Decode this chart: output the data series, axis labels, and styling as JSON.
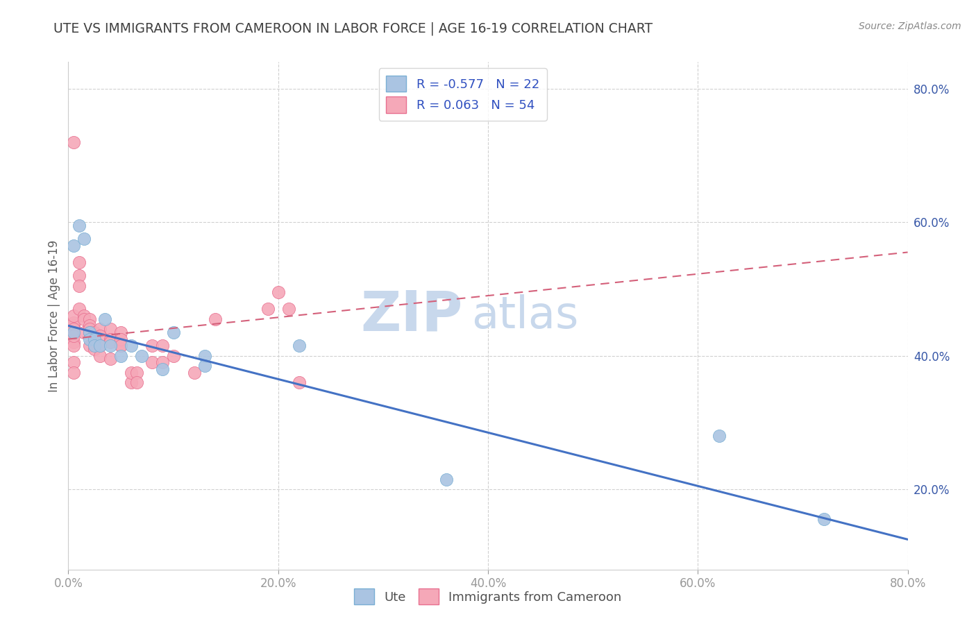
{
  "title": "UTE VS IMMIGRANTS FROM CAMEROON IN LABOR FORCE | AGE 16-19 CORRELATION CHART",
  "source": "Source: ZipAtlas.com",
  "ylabel": "In Labor Force | Age 16-19",
  "xlim": [
    0.0,
    0.8
  ],
  "ylim": [
    0.08,
    0.84
  ],
  "xticks": [
    0.0,
    0.2,
    0.4,
    0.6,
    0.8
  ],
  "yticks": [
    0.2,
    0.4,
    0.6,
    0.8
  ],
  "xtick_labels": [
    "0.0%",
    "20.0%",
    "40.0%",
    "60.0%",
    "80.0%"
  ],
  "ytick_labels": [
    "20.0%",
    "40.0%",
    "60.0%",
    "80.0%"
  ],
  "legend_labels": [
    "Ute",
    "Immigrants from Cameroon"
  ],
  "R_ute": -0.577,
  "N_ute": 22,
  "R_cam": 0.063,
  "N_cam": 54,
  "blue_color": "#aac4e2",
  "pink_color": "#f5a8b8",
  "blue_edge": "#7aafd4",
  "pink_edge": "#e87090",
  "blue_line_color": "#4472c4",
  "pink_line_color": "#d4607a",
  "watermark_zip": "ZIP",
  "watermark_atlas": "atlas",
  "watermark_color": "#c8d8ec",
  "background_color": "#ffffff",
  "grid_color": "#d0d0d0",
  "title_color": "#404040",
  "axis_label_color": "#606060",
  "tick_label_color": "#3858a8",
  "ute_x": [
    0.005,
    0.005,
    0.01,
    0.015,
    0.02,
    0.02,
    0.025,
    0.025,
    0.03,
    0.035,
    0.04,
    0.05,
    0.06,
    0.07,
    0.09,
    0.1,
    0.13,
    0.13,
    0.22,
    0.36,
    0.62,
    0.72
  ],
  "ute_y": [
    0.565,
    0.435,
    0.595,
    0.575,
    0.435,
    0.425,
    0.425,
    0.415,
    0.415,
    0.455,
    0.415,
    0.4,
    0.415,
    0.4,
    0.38,
    0.435,
    0.4,
    0.385,
    0.415,
    0.215,
    0.28,
    0.155
  ],
  "cam_x": [
    0.005,
    0.005,
    0.005,
    0.005,
    0.005,
    0.005,
    0.005,
    0.005,
    0.005,
    0.005,
    0.005,
    0.005,
    0.01,
    0.01,
    0.01,
    0.01,
    0.015,
    0.015,
    0.015,
    0.02,
    0.02,
    0.02,
    0.02,
    0.02,
    0.025,
    0.025,
    0.025,
    0.03,
    0.03,
    0.03,
    0.03,
    0.04,
    0.04,
    0.04,
    0.04,
    0.05,
    0.05,
    0.05,
    0.05,
    0.06,
    0.06,
    0.065,
    0.065,
    0.08,
    0.08,
    0.09,
    0.09,
    0.1,
    0.12,
    0.14,
    0.19,
    0.2,
    0.21,
    0.22
  ],
  "cam_y": [
    0.72,
    0.445,
    0.44,
    0.435,
    0.45,
    0.46,
    0.42,
    0.415,
    0.44,
    0.43,
    0.39,
    0.375,
    0.54,
    0.52,
    0.505,
    0.47,
    0.46,
    0.455,
    0.435,
    0.455,
    0.445,
    0.44,
    0.435,
    0.415,
    0.435,
    0.425,
    0.41,
    0.44,
    0.43,
    0.415,
    0.4,
    0.44,
    0.425,
    0.42,
    0.395,
    0.415,
    0.435,
    0.425,
    0.415,
    0.36,
    0.375,
    0.375,
    0.36,
    0.415,
    0.39,
    0.415,
    0.39,
    0.4,
    0.375,
    0.455,
    0.47,
    0.495,
    0.47,
    0.36
  ],
  "blue_line_x0": 0.0,
  "blue_line_x1": 0.8,
  "blue_line_y0": 0.445,
  "blue_line_y1": 0.125,
  "pink_line_x0": 0.0,
  "pink_line_x1": 0.8,
  "pink_line_y0": 0.425,
  "pink_line_y1": 0.555
}
